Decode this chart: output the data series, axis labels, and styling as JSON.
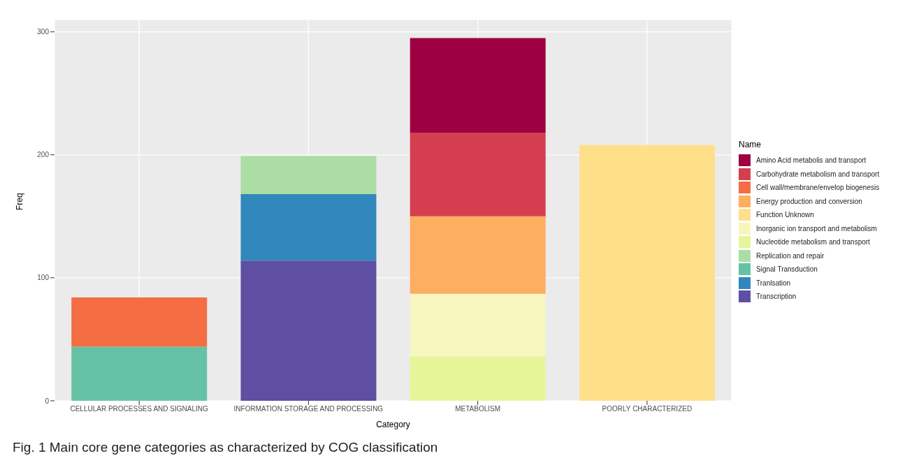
{
  "chart_data": {
    "type": "bar",
    "stacked": true,
    "xlabel": "Category",
    "ylabel": "Freq",
    "legend_title": "Name",
    "legend": "right",
    "grid": true,
    "categories": [
      "CELLULAR PROCESSES AND SIGNALING",
      "INFORMATION STORAGE AND PROCESSING",
      "METABOLISM",
      "POORLY CHARACTERIZED"
    ],
    "ylim": [
      0,
      310
    ],
    "yticks": [
      0,
      100,
      200,
      300
    ],
    "series": [
      {
        "name": "Transcription",
        "color": "#5e4fa2",
        "values": [
          null,
          114,
          null,
          null
        ]
      },
      {
        "name": "Tranlsation",
        "color": "#3288bd",
        "values": [
          null,
          54,
          null,
          null
        ]
      },
      {
        "name": "Signal Transduction",
        "color": "#66c2a5",
        "values": [
          44,
          null,
          null,
          null
        ]
      },
      {
        "name": "Replication and repair",
        "color": "#abdda4",
        "values": [
          null,
          31,
          null,
          null
        ]
      },
      {
        "name": "Nucleotide metabolism and transport",
        "color": "#e6f598",
        "values": [
          null,
          null,
          36,
          null
        ]
      },
      {
        "name": "Inorganic ion transport and metabolism",
        "color": "#f8f6bf",
        "values": [
          null,
          null,
          51,
          null
        ]
      },
      {
        "name": "Function Unknown",
        "color": "#fee08b",
        "values": [
          null,
          null,
          null,
          208
        ]
      },
      {
        "name": "Energy production and conversion",
        "color": "#fdae61",
        "values": [
          null,
          null,
          63,
          null
        ]
      },
      {
        "name": "Cell wall/membrane/envelop biogenesis",
        "color": "#f46d43",
        "values": [
          40,
          null,
          null,
          null
        ]
      },
      {
        "name": "Carbohydrate metabolism and transport",
        "color": "#d53e4f",
        "values": [
          null,
          null,
          68,
          null
        ]
      },
      {
        "name": "Amino Acid metabolis and transport",
        "color": "#9e0142",
        "values": [
          null,
          null,
          77,
          null
        ]
      }
    ],
    "annotations": [
      "Fig. 1 Main core gene categories as characterized by COG classification"
    ]
  }
}
